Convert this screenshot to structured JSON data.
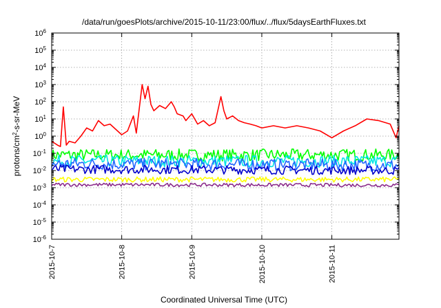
{
  "chart_data": {
    "type": "line",
    "title": "/data/run/goesPlots/archive/2015-10-11/23:00/flux/../flux/5daysEarthFluxes.txt",
    "xlabel": "Coordinated Universal Time (UTC)",
    "ylabel": "protons/cm2-s-sr-MeV",
    "ylabel_parts": {
      "base": "protons/cm",
      "sup": "2",
      "rest": "-s-sr-MeV"
    },
    "x_range": [
      "2015-10-07",
      "2015-10-11 23:00"
    ],
    "x_ticks": [
      "2015-10-7",
      "2015-10-8",
      "2015-10-9",
      "2015-10-10",
      "2015-10-11"
    ],
    "y_scale": "log",
    "ylim": [
      1e-06,
      1000000.0
    ],
    "y_ticks": [
      {
        "base": "10",
        "exp": "-6",
        "value": 1e-06
      },
      {
        "base": "10",
        "exp": "-5",
        "value": 1e-05
      },
      {
        "base": "10",
        "exp": "-4",
        "value": 0.0001
      },
      {
        "base": "10",
        "exp": "-3",
        "value": 0.001
      },
      {
        "base": "10",
        "exp": "-2",
        "value": 0.01
      },
      {
        "base": "10",
        "exp": "-1",
        "value": 0.1
      },
      {
        "base": "10",
        "exp": "0",
        "value": 1
      },
      {
        "base": "10",
        "exp": "1",
        "value": 10
      },
      {
        "base": "10",
        "exp": "2",
        "value": 100
      },
      {
        "base": "10",
        "exp": "3",
        "value": 1000
      },
      {
        "base": "10",
        "exp": "4",
        "value": 10000
      },
      {
        "base": "10",
        "exp": "5",
        "value": 100000
      },
      {
        "base": "10",
        "exp": "6",
        "value": 1000000
      }
    ],
    "grid": true,
    "legend": "none",
    "series": [
      {
        "color": "#ff0000",
        "points": [
          [
            "2015-10-07 00:00",
            0.5
          ],
          [
            "2015-10-07 02:00",
            0.3
          ],
          [
            "2015-10-07 03:00",
            0.25
          ],
          [
            "2015-10-07 04:00",
            50
          ],
          [
            "2015-10-07 05:00",
            0.3
          ],
          [
            "2015-10-07 06:00",
            0.5
          ],
          [
            "2015-10-07 08:00",
            0.4
          ],
          [
            "2015-10-07 10:00",
            1
          ],
          [
            "2015-10-07 12:00",
            3
          ],
          [
            "2015-10-07 14:00",
            2
          ],
          [
            "2015-10-07 16:00",
            8
          ],
          [
            "2015-10-07 18:00",
            4
          ],
          [
            "2015-10-07 20:00",
            5
          ],
          [
            "2015-10-08 00:00",
            1.2
          ],
          [
            "2015-10-08 02:00",
            2
          ],
          [
            "2015-10-08 04:00",
            15
          ],
          [
            "2015-10-08 05:00",
            1.5
          ],
          [
            "2015-10-08 07:00",
            1000
          ],
          [
            "2015-10-08 08:00",
            150
          ],
          [
            "2015-10-08 09:00",
            800
          ],
          [
            "2015-10-08 10:00",
            70
          ],
          [
            "2015-10-08 11:00",
            30
          ],
          [
            "2015-10-08 13:00",
            60
          ],
          [
            "2015-10-08 15:00",
            40
          ],
          [
            "2015-10-08 17:00",
            100
          ],
          [
            "2015-10-08 18:00",
            50
          ],
          [
            "2015-10-08 19:00",
            20
          ],
          [
            "2015-10-08 21:00",
            15
          ],
          [
            "2015-10-08 22:00",
            8
          ],
          [
            "2015-10-09 00:00",
            20
          ],
          [
            "2015-10-09 02:00",
            5
          ],
          [
            "2015-10-09 04:00",
            8
          ],
          [
            "2015-10-09 06:00",
            4
          ],
          [
            "2015-10-09 08:00",
            6
          ],
          [
            "2015-10-09 10:00",
            200
          ],
          [
            "2015-10-09 11:00",
            30
          ],
          [
            "2015-10-09 12:00",
            10
          ],
          [
            "2015-10-09 14:00",
            15
          ],
          [
            "2015-10-09 16:00",
            8
          ],
          [
            "2015-10-09 18:00",
            6
          ],
          [
            "2015-10-09 20:00",
            5
          ],
          [
            "2015-10-09 22:00",
            4
          ],
          [
            "2015-10-10 00:00",
            3
          ],
          [
            "2015-10-10 04:00",
            4
          ],
          [
            "2015-10-10 08:00",
            3
          ],
          [
            "2015-10-10 12:00",
            4
          ],
          [
            "2015-10-10 16:00",
            3
          ],
          [
            "2015-10-10 20:00",
            2
          ],
          [
            "2015-10-11 00:00",
            0.8
          ],
          [
            "2015-10-11 04:00",
            2
          ],
          [
            "2015-10-11 08:00",
            4
          ],
          [
            "2015-10-11 12:00",
            10
          ],
          [
            "2015-10-11 16:00",
            8
          ],
          [
            "2015-10-11 20:00",
            5
          ],
          [
            "2015-10-11 22:00",
            0.8
          ],
          [
            "2015-10-11 23:00",
            4
          ]
        ]
      },
      {
        "color": "#00ff00",
        "points": [
          [
            "2015-10-07 00:00",
            0.08
          ],
          [
            "2015-10-11 23:00",
            0.08
          ]
        ],
        "jitter": 0.35
      },
      {
        "color": "#00e5e5",
        "points": [
          [
            "2015-10-07 00:00",
            0.035
          ],
          [
            "2015-10-11 23:00",
            0.035
          ]
        ],
        "jitter": 0.35
      },
      {
        "color": "#2266ff",
        "points": [
          [
            "2015-10-07 00:00",
            0.025
          ],
          [
            "2015-10-11 23:00",
            0.02
          ]
        ],
        "jitter": 0.35
      },
      {
        "color": "#0000cc",
        "points": [
          [
            "2015-10-07 00:00",
            0.012
          ],
          [
            "2015-10-11 23:00",
            0.01
          ]
        ],
        "jitter": 0.25
      },
      {
        "color": "#ffff00",
        "points": [
          [
            "2015-10-07 00:00",
            0.003
          ],
          [
            "2015-10-11 23:00",
            0.003
          ]
        ],
        "jitter": 0.15
      },
      {
        "color": "#8b2c8b",
        "points": [
          [
            "2015-10-07 00:00",
            0.0015
          ],
          [
            "2015-10-11 23:00",
            0.0014
          ]
        ],
        "jitter": 0.1
      }
    ]
  }
}
